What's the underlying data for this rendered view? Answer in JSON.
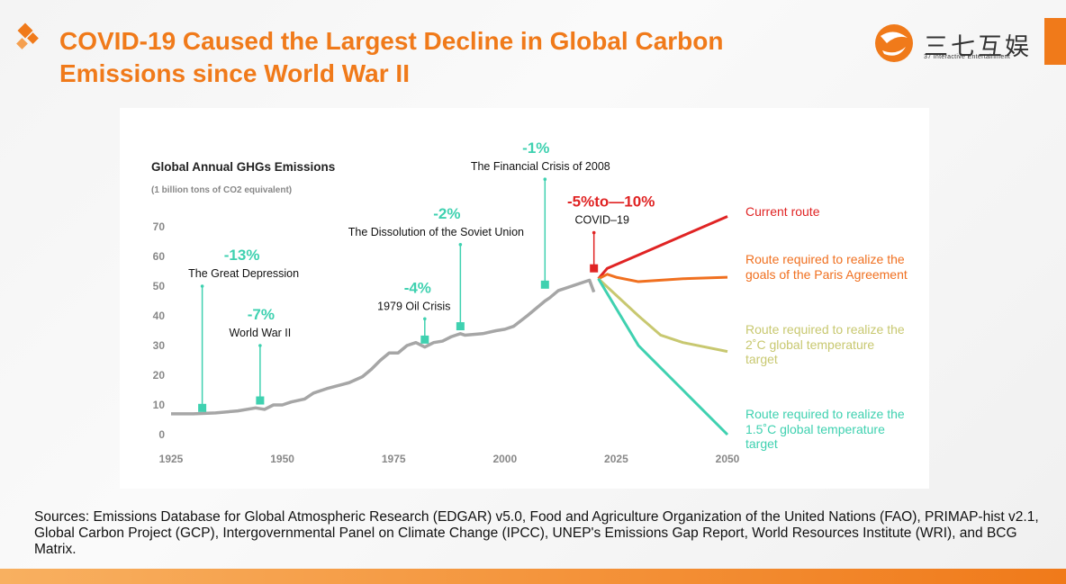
{
  "header": {
    "title": "COVID-19 Caused the Largest Decline in Global Carbon Emissions since World War II",
    "logo": "三七互娱",
    "logo_subtitle": "37 Interactive Entertainment"
  },
  "chart_data": {
    "type": "line",
    "title": "Global Annual GHGs Emissions",
    "subtitle": "(1 billion tons of CO2 equivalent)",
    "xlim": [
      1925,
      2050
    ],
    "xticks": [
      1925,
      1950,
      1975,
      2000,
      2025,
      2050
    ],
    "ylim": [
      0,
      70
    ],
    "yticks": [
      0,
      10,
      20,
      30,
      40,
      50,
      60,
      70
    ],
    "series": [
      {
        "color": "#a6a6a6",
        "x": [
          1925,
          1930,
          1935,
          1940,
          1944,
          1946,
          1948,
          1950,
          1952,
          1955,
          1957,
          1960,
          1965,
          1968,
          1970,
          1972,
          1974,
          1976,
          1978,
          1980,
          1982,
          1984,
          1986,
          1988,
          1990,
          1991,
          1995,
          1998,
          2000,
          2002,
          2005,
          2009,
          2010,
          2012,
          2015,
          2019,
          2020
        ],
        "values": [
          7,
          7,
          7.3,
          8,
          9,
          8.5,
          10,
          10,
          11,
          12,
          14,
          15.5,
          17.5,
          19.5,
          22,
          25,
          27.5,
          27.5,
          30,
          31,
          29.5,
          31,
          31.5,
          33,
          34,
          33.5,
          34,
          35,
          35.5,
          36.5,
          40,
          45,
          46,
          48.5,
          50,
          52,
          48
        ]
      },
      {
        "name": "Current route",
        "color": "#e02424",
        "x": [
          2021,
          2023,
          2030,
          2040,
          2050
        ],
        "values": [
          52.5,
          56,
          60.5,
          67,
          73.5
        ]
      },
      {
        "name": "Route required to realize the goals of the Paris Agreement",
        "color": "#f07020",
        "x": [
          2021,
          2023,
          2025,
          2030,
          2040,
          2050
        ],
        "values": [
          52.5,
          54,
          53,
          51.5,
          52.5,
          53
        ]
      },
      {
        "name": "Route required to realize the 2˚C global temperature target",
        "color": "#c8c870",
        "x": [
          2021,
          2030,
          2035,
          2040,
          2050
        ],
        "values": [
          52.5,
          40,
          33.5,
          31,
          28
        ]
      },
      {
        "name": "Route required to realize the 1.5˚C global temperature target",
        "color": "#3fd1b0",
        "x": [
          2021,
          2030,
          2032,
          2040,
          2050
        ],
        "values": [
          52.5,
          30,
          27,
          15,
          0
        ]
      }
    ],
    "annotations": [
      {
        "label": "-13%",
        "text": "The Great Depression",
        "color": "#3fd1b0",
        "x": 1932,
        "y": 9,
        "top": 50
      },
      {
        "label": "-7%",
        "text": "World War II",
        "color": "#3fd1b0",
        "x": 1945,
        "y": 11.5,
        "top": 30
      },
      {
        "label": "-4%",
        "text": "1979 Oil Crisis",
        "color": "#3fd1b0",
        "x": 1982,
        "y": 32,
        "top": 39
      },
      {
        "label": "-2%",
        "text": "The Dissolution of the Soviet Union",
        "color": "#3fd1b0",
        "x": 1990,
        "y": 36.5,
        "top": 64
      },
      {
        "label": "-1%",
        "text": "The Financial Crisis of 2008",
        "color": "#3fd1b0",
        "x": 2009,
        "y": 50.5,
        "top": 86
      },
      {
        "label": "-5%to—10%",
        "text": "COVID–19",
        "color": "#e02424",
        "x": 2020,
        "y": 56,
        "top": 68
      }
    ]
  },
  "footer": {
    "sources": "Sources: Emissions Database for Global Atmospheric Research (EDGAR) v5.0, Food and Agriculture Organization of the United Nations (FAO), PRIMAP-hist v2.1, Global Carbon Project (GCP), Intergovernmental Panel on Climate Change (IPCC), UNEP's Emissions Gap Report, World Resources Institute (WRI), and BCG Matrix."
  }
}
